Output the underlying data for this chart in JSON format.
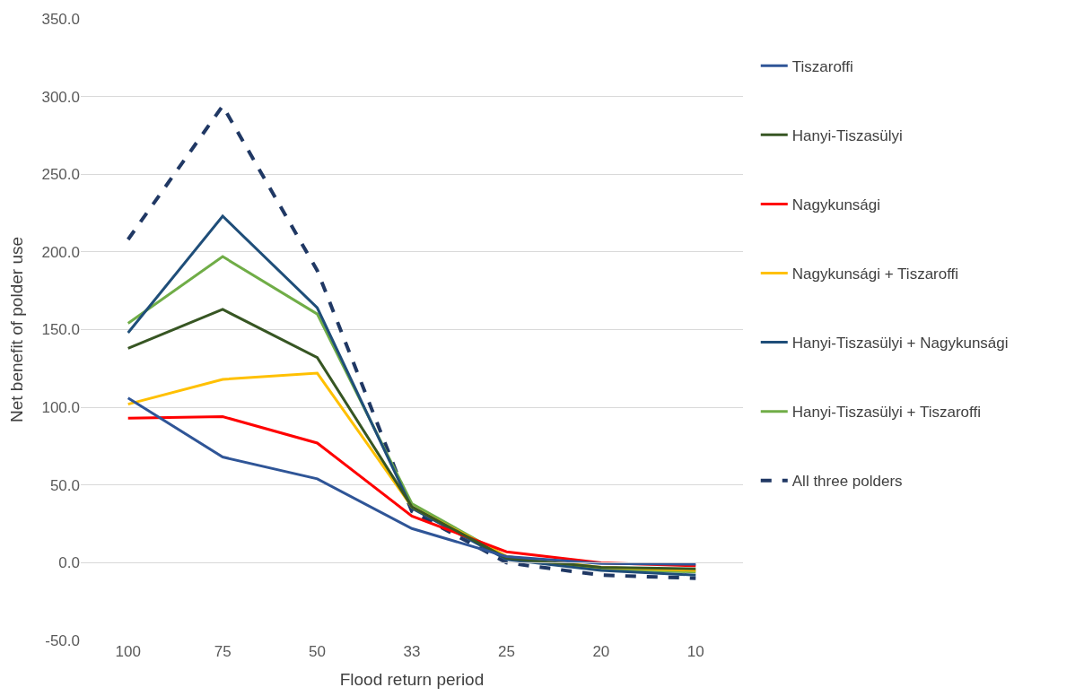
{
  "chart_data": {
    "type": "line",
    "xlabel": "Flood return period",
    "ylabel": "Net benefit of polder use",
    "categories": [
      "100",
      "75",
      "50",
      "33",
      "25",
      "20",
      "10"
    ],
    "ylim": [
      -50,
      350
    ],
    "yticks": [
      {
        "value": -50,
        "label": "-50.0"
      },
      {
        "value": 0,
        "label": "0.0"
      },
      {
        "value": 50,
        "label": "50.0"
      },
      {
        "value": 100,
        "label": "100.0"
      },
      {
        "value": 150,
        "label": "150.0"
      },
      {
        "value": 200,
        "label": "200.0"
      },
      {
        "value": 250,
        "label": "250.0"
      },
      {
        "value": 300,
        "label": "300.0"
      },
      {
        "value": 350,
        "label": "350.0"
      }
    ],
    "grid": "y",
    "legend": "right",
    "marker": "none",
    "series": [
      {
        "name": "Tiszaroffi",
        "color": "#2f5597",
        "values": [
          106,
          68,
          54,
          22,
          4,
          -0.5,
          -1
        ]
      },
      {
        "name": "Hanyi-Tiszasülyi",
        "color": "#375623",
        "values": [
          138,
          163,
          132,
          36,
          3,
          -3,
          -4
        ]
      },
      {
        "name": "Nagykunsági",
        "color": "#ff0000",
        "values": [
          93,
          94,
          77,
          30,
          7,
          0,
          -2
        ]
      },
      {
        "name": "Nagykunsági + Tiszaroffi",
        "color": "#ffc000",
        "values": [
          102,
          118,
          122,
          36,
          4,
          -3,
          -5
        ]
      },
      {
        "name": "Hanyi-Tiszasülyi + Nagykunsági",
        "color": "#1f4e79",
        "values": [
          148,
          223,
          164,
          35,
          2,
          -5,
          -8
        ]
      },
      {
        "name": "Hanyi-Tiszasülyi + Tiszaroffi",
        "color": "#70ad47",
        "values": [
          154,
          197,
          160,
          38,
          4,
          -4,
          -6
        ]
      },
      {
        "name": "All three polders",
        "color": "#203864",
        "line_style": "dashed",
        "values": [
          208,
          294,
          188,
          33,
          0,
          -8,
          -10
        ]
      }
    ]
  }
}
